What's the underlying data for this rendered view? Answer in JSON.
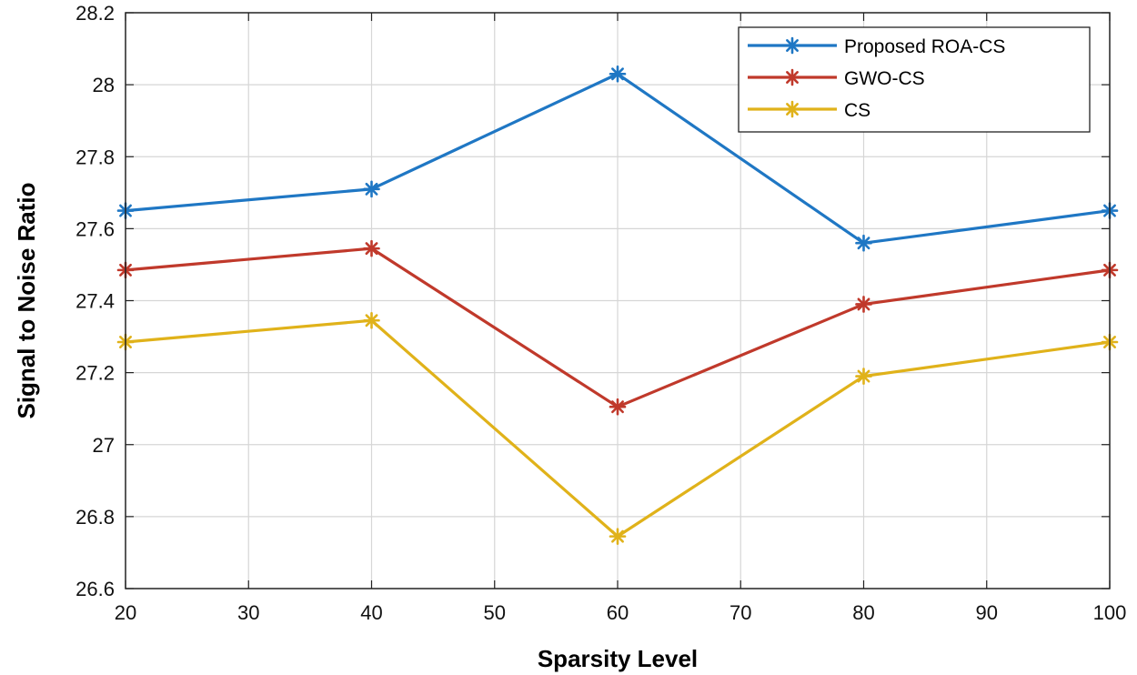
{
  "chart_data": {
    "type": "line",
    "title": "",
    "xlabel": "Sparsity Level",
    "ylabel": "Signal to Noise Ratio",
    "xlim": [
      20,
      100
    ],
    "ylim": [
      26.6,
      28.2
    ],
    "xticks": [
      20,
      30,
      40,
      50,
      60,
      70,
      80,
      90,
      100
    ],
    "yticks": [
      26.6,
      26.8,
      27,
      27.2,
      27.4,
      27.6,
      27.8,
      28,
      28.2
    ],
    "ytick_labels": [
      "26.6",
      "26.8",
      "27",
      "27.2",
      "27.4",
      "27.6",
      "27.8",
      "28",
      "28.2"
    ],
    "grid": true,
    "legend_position": "top-right",
    "x": [
      20,
      40,
      60,
      80,
      100
    ],
    "series": [
      {
        "name": "Proposed ROA-CS",
        "color": "#1f77c4",
        "values": [
          27.65,
          27.71,
          28.03,
          27.56,
          27.65
        ]
      },
      {
        "name": "GWO-CS",
        "color": "#c0392b",
        "values": [
          27.485,
          27.545,
          27.105,
          27.39,
          27.485
        ]
      },
      {
        "name": "CS",
        "color": "#e0b21a",
        "values": [
          27.285,
          27.345,
          26.745,
          27.19,
          27.285
        ]
      }
    ]
  }
}
